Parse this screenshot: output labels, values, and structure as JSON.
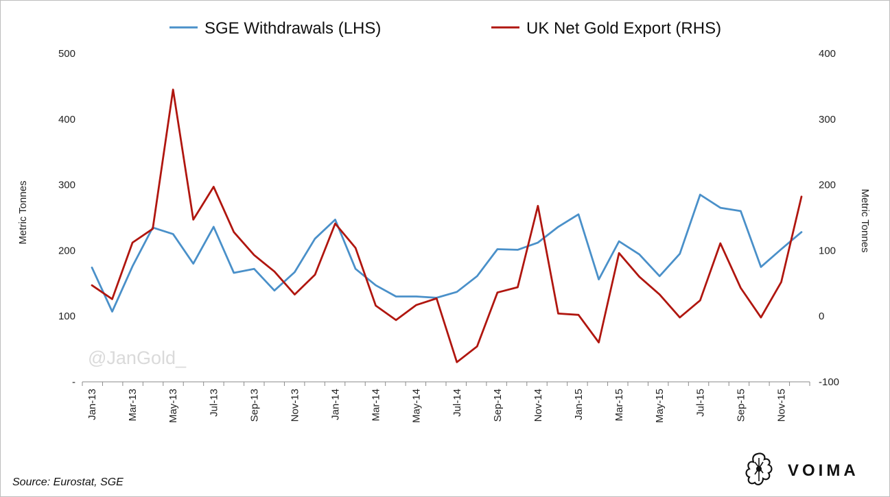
{
  "chart_data": {
    "type": "line",
    "categories": [
      "Jan-13",
      "Feb-13",
      "Mar-13",
      "Apr-13",
      "May-13",
      "Jun-13",
      "Jul-13",
      "Aug-13",
      "Sep-13",
      "Oct-13",
      "Nov-13",
      "Dec-13",
      "Jan-14",
      "Feb-14",
      "Mar-14",
      "Apr-14",
      "May-14",
      "Jun-14",
      "Jul-14",
      "Aug-14",
      "Sep-14",
      "Oct-14",
      "Nov-14",
      "Dec-14",
      "Jan-15",
      "Feb-15",
      "Mar-15",
      "Apr-15",
      "May-15",
      "Jun-15",
      "Jul-15",
      "Aug-15",
      "Sep-15",
      "Oct-15",
      "Nov-15",
      "Dec-15"
    ],
    "tick_labels": [
      "Jan-13",
      "Mar-13",
      "May-13",
      "Jul-13",
      "Sep-13",
      "Nov-13",
      "Jan-14",
      "Mar-14",
      "May-14",
      "Jul-14",
      "Sep-14",
      "Nov-14",
      "Jan-15",
      "Mar-15",
      "May-15",
      "Jul-15",
      "Sep-15",
      "Nov-15"
    ],
    "series": [
      {
        "name": "SGE Withdrawals (LHS)",
        "axis": "left",
        "color": "#4a90c9",
        "values": [
          174,
          107,
          176,
          235,
          225,
          180,
          236,
          166,
          172,
          139,
          167,
          218,
          247,
          172,
          147,
          130,
          130,
          128,
          137,
          161,
          202,
          201,
          212,
          236,
          255,
          156,
          214,
          194,
          161,
          195,
          285,
          265,
          260,
          175,
          202,
          228
        ]
      },
      {
        "name": "UK Net Gold Export (RHS)",
        "axis": "right",
        "color": "#b0160f",
        "values": [
          47,
          26,
          112,
          133,
          345,
          147,
          197,
          128,
          93,
          68,
          33,
          63,
          141,
          104,
          16,
          -6,
          17,
          27,
          -70,
          -46,
          36,
          44,
          168,
          4,
          2,
          -40,
          96,
          60,
          33,
          -2,
          24,
          111,
          43,
          -2,
          52,
          182
        ]
      }
    ],
    "y_left": {
      "label": "Metric Tonnes",
      "ylim": [
        0,
        500
      ],
      "ticks": [
        "-",
        "100",
        "200",
        "300",
        "400",
        "500"
      ]
    },
    "y_right": {
      "label": "Metric Tonnes",
      "ylim": [
        -100,
        400
      ],
      "ticks": [
        "-100",
        "0",
        "100",
        "200",
        "300",
        "400"
      ]
    },
    "legend_position": "top",
    "grid": false
  },
  "watermark": "@JanGold_",
  "source": "Source: Eurostat, SGE",
  "brand": {
    "name": "VOIMA"
  }
}
